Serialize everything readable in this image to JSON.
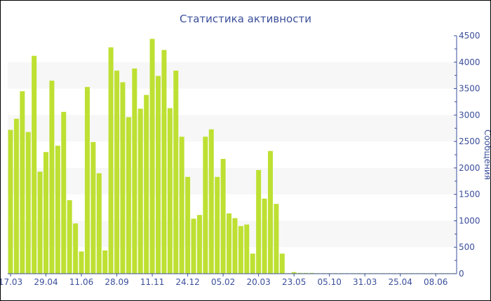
{
  "chart_data": {
    "type": "bar",
    "title": "Статистика активности",
    "ylabel": "Сообщения",
    "ylim": [
      0,
      4500
    ],
    "yticks": [
      0,
      500,
      1000,
      1500,
      2000,
      2500,
      3000,
      3500,
      4000,
      4500
    ],
    "y_axis_side": "right",
    "grid": "alternating horizontal bands",
    "xtick_labels": [
      "17.03",
      "29.04",
      "11.06",
      "28.09",
      "11.11",
      "24.12",
      "05.02",
      "20.03",
      "23.05",
      "05.10",
      "31.03",
      "25.04",
      "08.06"
    ],
    "xtick_every": 6,
    "values": [
      2720,
      2930,
      3450,
      2680,
      4120,
      1930,
      2300,
      3650,
      2420,
      3060,
      1390,
      950,
      420,
      3530,
      2490,
      1900,
      440,
      4280,
      3840,
      3620,
      2960,
      3880,
      3120,
      3380,
      4440,
      3740,
      4230,
      3130,
      3840,
      2590,
      1830,
      1040,
      1110,
      2590,
      2730,
      1830,
      2170,
      1140,
      1050,
      900,
      930,
      380,
      1960,
      1420,
      2320,
      1320,
      380,
      10,
      30,
      15,
      15,
      15,
      10,
      10,
      10,
      10,
      10,
      10,
      10,
      10,
      10,
      10,
      10,
      10,
      10,
      10,
      10,
      10,
      10,
      10,
      10,
      10,
      10,
      10,
      10,
      10
    ],
    "colors": {
      "bar": "#bde032",
      "axis": "#3b4f9b",
      "band": "#f7f7f7"
    }
  }
}
